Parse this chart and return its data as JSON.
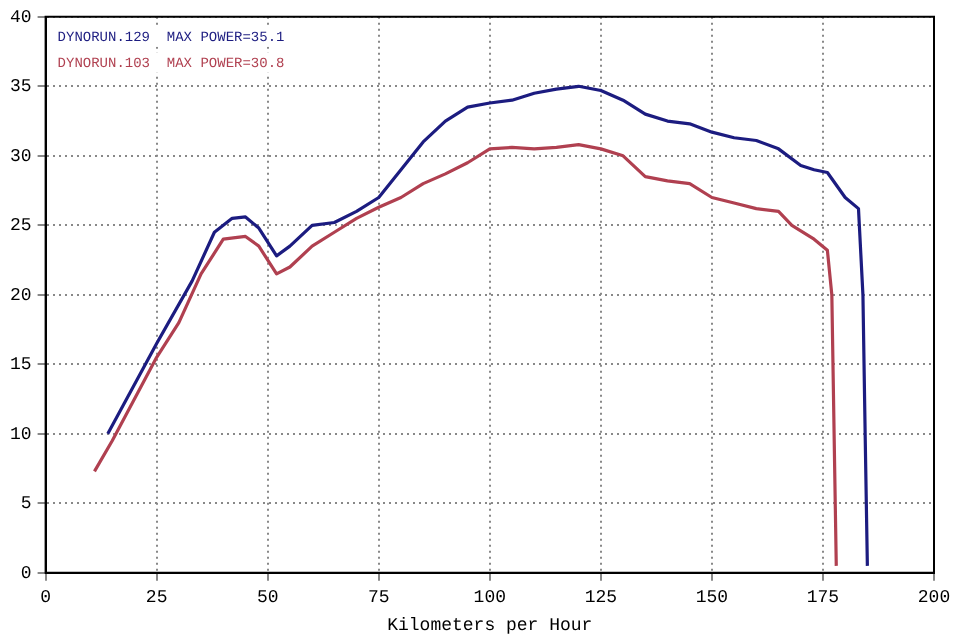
{
  "chart_data": {
    "type": "line",
    "xlabel": "Kilometers per Hour",
    "xlim": [
      0,
      200
    ],
    "xticks": [
      0,
      25,
      50,
      75,
      100,
      125,
      150,
      175,
      200
    ],
    "ylim": [
      0,
      40
    ],
    "yticks": [
      0,
      5,
      10,
      15,
      20,
      25,
      30,
      35,
      40
    ],
    "grid": true,
    "legend": "top left",
    "marker": "none",
    "line_style": "solid",
    "series": [
      {
        "name": "DYNORUN.129  MAX POWER=35.1",
        "color": "#1c1c80",
        "x": [
          14,
          25,
          33,
          38,
          42,
          45,
          48,
          52,
          55,
          60,
          65,
          70,
          75,
          80,
          85,
          90,
          95,
          100,
          105,
          110,
          115,
          120,
          125,
          130,
          135,
          140,
          145,
          150,
          155,
          160,
          165,
          170,
          173,
          176,
          180,
          183,
          184,
          184.5,
          185
        ],
        "values": [
          10,
          16.5,
          21,
          24.5,
          25.5,
          25.6,
          24.8,
          22.8,
          23.5,
          25,
          25.2,
          26,
          27,
          29,
          31,
          32.5,
          33.5,
          33.8,
          34,
          34.5,
          34.8,
          35,
          34.7,
          34,
          33,
          32.5,
          32.3,
          31.7,
          31.3,
          31.1,
          30.5,
          29.3,
          29,
          28.8,
          27,
          26.2,
          20,
          10,
          0.5
        ]
      },
      {
        "name": "DYNORUN.103  MAX POWER=30.8",
        "color": "#b04050",
        "x": [
          11,
          15,
          25,
          30,
          35,
          40,
          45,
          48,
          52,
          55,
          60,
          65,
          70,
          75,
          80,
          85,
          90,
          95,
          100,
          105,
          110,
          115,
          120,
          125,
          130,
          135,
          140,
          145,
          150,
          155,
          160,
          165,
          168,
          173,
          176,
          177,
          178
        ],
        "values": [
          7.3,
          9.5,
          15.5,
          18,
          21.5,
          24,
          24.2,
          23.5,
          21.5,
          22,
          23.5,
          24.5,
          25.5,
          26.3,
          27,
          28,
          28.7,
          29.5,
          30.5,
          30.6,
          30.5,
          30.6,
          30.8,
          30.5,
          30,
          28.5,
          28.2,
          28,
          27,
          26.6,
          26.2,
          26,
          25,
          24,
          23.2,
          20,
          0.5
        ]
      }
    ]
  }
}
